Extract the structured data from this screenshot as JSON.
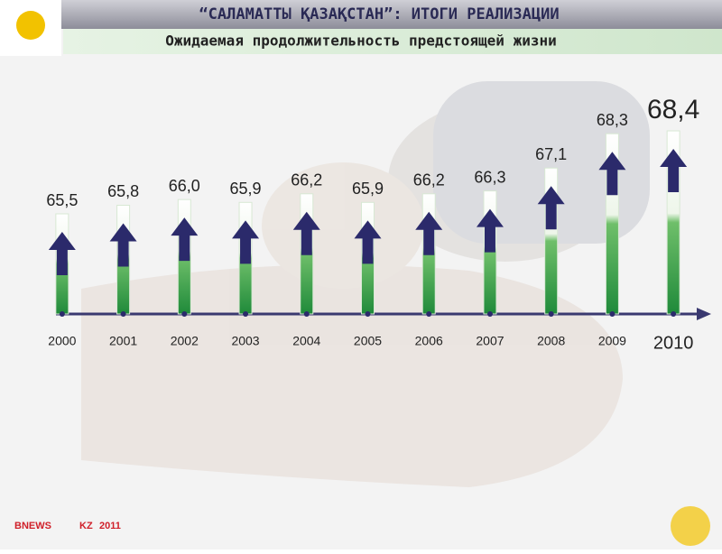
{
  "chart_data": {
    "type": "bar",
    "title": "“САЛАМАТТЫ ҚАЗАҚСТАН”: ИТОГИ РЕАЛИЗАЦИИ",
    "subtitle": "Ожидаемая продолжительность предстоящей жизни",
    "categories": [
      "2000",
      "2001",
      "2002",
      "2003",
      "2004",
      "2005",
      "2006",
      "2007",
      "2008",
      "2009",
      "2010"
    ],
    "values": [
      65.5,
      65.8,
      66.0,
      65.9,
      66.2,
      65.9,
      66.2,
      66.3,
      67.1,
      68.3,
      68.4
    ],
    "value_labels": [
      "65,5",
      "65,8",
      "66,0",
      "65,9",
      "66,2",
      "65,9",
      "66,2",
      "66,3",
      "67,1",
      "68,3",
      "68,4"
    ],
    "color": "#2e9a44",
    "arrow_color": "#2b2a6b",
    "ylim": [
      62,
      69
    ],
    "footer": {
      "brand": "BNEWS",
      "domain": "KZ",
      "year": "2011"
    }
  }
}
